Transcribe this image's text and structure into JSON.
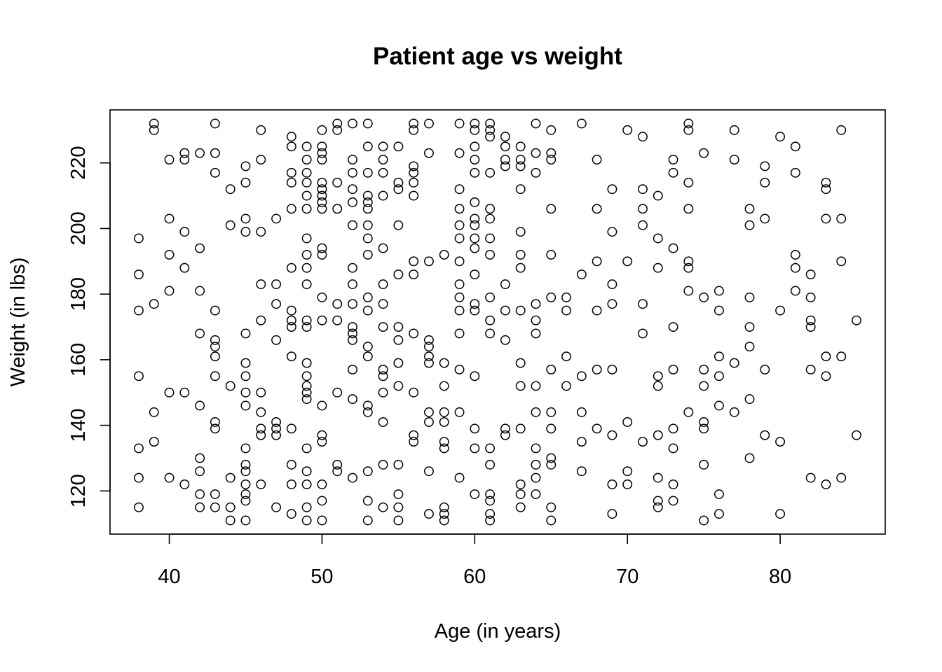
{
  "chart_data": {
    "type": "scatter",
    "title": "Patient age vs weight",
    "xlabel": "Age (in years)",
    "ylabel": "Weight (in lbs)",
    "xlim": [
      36.12,
      86.88
    ],
    "ylim": [
      106.84,
      236.16
    ],
    "xticks": [
      40,
      50,
      60,
      70,
      80
    ],
    "yticks": [
      120,
      140,
      160,
      180,
      200,
      220
    ],
    "grid": false,
    "legend": "none",
    "points": [
      [
        38,
        197
      ],
      [
        38,
        186
      ],
      [
        38,
        175
      ],
      [
        38,
        155
      ],
      [
        38,
        133
      ],
      [
        38,
        124
      ],
      [
        38,
        115
      ],
      [
        39,
        232
      ],
      [
        39,
        230
      ],
      [
        39,
        177
      ],
      [
        39,
        144
      ],
      [
        39,
        135
      ],
      [
        40,
        221
      ],
      [
        40,
        203
      ],
      [
        40,
        192
      ],
      [
        40,
        181
      ],
      [
        40,
        150
      ],
      [
        40,
        124
      ],
      [
        41,
        223
      ],
      [
        41,
        221
      ],
      [
        41,
        199
      ],
      [
        41,
        188
      ],
      [
        41,
        150
      ],
      [
        41,
        122
      ],
      [
        42,
        223
      ],
      [
        42,
        194
      ],
      [
        42,
        181
      ],
      [
        42,
        168
      ],
      [
        42,
        146
      ],
      [
        42,
        130
      ],
      [
        42,
        126
      ],
      [
        42,
        119
      ],
      [
        42,
        115
      ],
      [
        43,
        232
      ],
      [
        43,
        223
      ],
      [
        43,
        217
      ],
      [
        43,
        175
      ],
      [
        43,
        166
      ],
      [
        43,
        164
      ],
      [
        43,
        161
      ],
      [
        43,
        155
      ],
      [
        43,
        141
      ],
      [
        43,
        139
      ],
      [
        43,
        119
      ],
      [
        43,
        115
      ],
      [
        44,
        212
      ],
      [
        44,
        201
      ],
      [
        44,
        152
      ],
      [
        44,
        124
      ],
      [
        44,
        115
      ],
      [
        44,
        111
      ],
      [
        45,
        219
      ],
      [
        45,
        214
      ],
      [
        45,
        203
      ],
      [
        45,
        199
      ],
      [
        45,
        168
      ],
      [
        45,
        159
      ],
      [
        45,
        155
      ],
      [
        45,
        150
      ],
      [
        45,
        146
      ],
      [
        45,
        133
      ],
      [
        45,
        128
      ],
      [
        45,
        126
      ],
      [
        45,
        122
      ],
      [
        45,
        119
      ],
      [
        45,
        117
      ],
      [
        45,
        111
      ],
      [
        46,
        230
      ],
      [
        46,
        221
      ],
      [
        46,
        199
      ],
      [
        46,
        183
      ],
      [
        46,
        172
      ],
      [
        46,
        150
      ],
      [
        46,
        144
      ],
      [
        46,
        139
      ],
      [
        46,
        137
      ],
      [
        46,
        122
      ],
      [
        47,
        203
      ],
      [
        47,
        183
      ],
      [
        47,
        177
      ],
      [
        47,
        166
      ],
      [
        47,
        141
      ],
      [
        47,
        139
      ],
      [
        47,
        137
      ],
      [
        47,
        115
      ],
      [
        48,
        228
      ],
      [
        48,
        225
      ],
      [
        48,
        217
      ],
      [
        48,
        214
      ],
      [
        48,
        206
      ],
      [
        48,
        188
      ],
      [
        48,
        175
      ],
      [
        48,
        172
      ],
      [
        48,
        170
      ],
      [
        48,
        161
      ],
      [
        48,
        139
      ],
      [
        48,
        128
      ],
      [
        48,
        122
      ],
      [
        48,
        113
      ],
      [
        49,
        225
      ],
      [
        49,
        221
      ],
      [
        49,
        217
      ],
      [
        49,
        214
      ],
      [
        49,
        210
      ],
      [
        49,
        206
      ],
      [
        49,
        197
      ],
      [
        49,
        192
      ],
      [
        49,
        188
      ],
      [
        49,
        183
      ],
      [
        49,
        172
      ],
      [
        49,
        170
      ],
      [
        49,
        159
      ],
      [
        49,
        155
      ],
      [
        49,
        152
      ],
      [
        49,
        150
      ],
      [
        49,
        148
      ],
      [
        49,
        133
      ],
      [
        49,
        126
      ],
      [
        49,
        122
      ],
      [
        49,
        115
      ],
      [
        49,
        111
      ],
      [
        50,
        230
      ],
      [
        50,
        225
      ],
      [
        50,
        223
      ],
      [
        50,
        221
      ],
      [
        50,
        214
      ],
      [
        50,
        212
      ],
      [
        50,
        210
      ],
      [
        50,
        208
      ],
      [
        50,
        206
      ],
      [
        50,
        194
      ],
      [
        50,
        192
      ],
      [
        50,
        179
      ],
      [
        50,
        172
      ],
      [
        50,
        146
      ],
      [
        50,
        137
      ],
      [
        50,
        135
      ],
      [
        50,
        122
      ],
      [
        50,
        117
      ],
      [
        50,
        111
      ],
      [
        51,
        232
      ],
      [
        51,
        230
      ],
      [
        51,
        214
      ],
      [
        51,
        206
      ],
      [
        51,
        177
      ],
      [
        51,
        172
      ],
      [
        51,
        150
      ],
      [
        51,
        128
      ],
      [
        51,
        126
      ],
      [
        52,
        232
      ],
      [
        52,
        221
      ],
      [
        52,
        217
      ],
      [
        52,
        212
      ],
      [
        52,
        208
      ],
      [
        52,
        201
      ],
      [
        52,
        188
      ],
      [
        52,
        183
      ],
      [
        52,
        177
      ],
      [
        52,
        170
      ],
      [
        52,
        168
      ],
      [
        52,
        166
      ],
      [
        52,
        157
      ],
      [
        52,
        148
      ],
      [
        52,
        124
      ],
      [
        53,
        232
      ],
      [
        53,
        225
      ],
      [
        53,
        217
      ],
      [
        53,
        210
      ],
      [
        53,
        208
      ],
      [
        53,
        206
      ],
      [
        53,
        201
      ],
      [
        53,
        197
      ],
      [
        53,
        192
      ],
      [
        53,
        179
      ],
      [
        53,
        175
      ],
      [
        53,
        164
      ],
      [
        53,
        161
      ],
      [
        53,
        146
      ],
      [
        53,
        144
      ],
      [
        53,
        126
      ],
      [
        53,
        117
      ],
      [
        53,
        111
      ],
      [
        54,
        225
      ],
      [
        54,
        221
      ],
      [
        54,
        217
      ],
      [
        54,
        210
      ],
      [
        54,
        194
      ],
      [
        54,
        183
      ],
      [
        54,
        177
      ],
      [
        54,
        170
      ],
      [
        54,
        157
      ],
      [
        54,
        155
      ],
      [
        54,
        150
      ],
      [
        54,
        141
      ],
      [
        54,
        128
      ],
      [
        54,
        115
      ],
      [
        55,
        225
      ],
      [
        55,
        214
      ],
      [
        55,
        212
      ],
      [
        55,
        201
      ],
      [
        55,
        186
      ],
      [
        55,
        170
      ],
      [
        55,
        166
      ],
      [
        55,
        159
      ],
      [
        55,
        152
      ],
      [
        55,
        128
      ],
      [
        55,
        119
      ],
      [
        55,
        115
      ],
      [
        55,
        111
      ],
      [
        56,
        232
      ],
      [
        56,
        230
      ],
      [
        56,
        219
      ],
      [
        56,
        217
      ],
      [
        56,
        214
      ],
      [
        56,
        210
      ],
      [
        56,
        190
      ],
      [
        56,
        186
      ],
      [
        56,
        168
      ],
      [
        56,
        150
      ],
      [
        56,
        137
      ],
      [
        56,
        135
      ],
      [
        57,
        232
      ],
      [
        57,
        223
      ],
      [
        57,
        190
      ],
      [
        57,
        166
      ],
      [
        57,
        164
      ],
      [
        57,
        161
      ],
      [
        57,
        159
      ],
      [
        57,
        144
      ],
      [
        57,
        141
      ],
      [
        57,
        126
      ],
      [
        57,
        113
      ],
      [
        58,
        192
      ],
      [
        58,
        159
      ],
      [
        58,
        152
      ],
      [
        58,
        144
      ],
      [
        58,
        141
      ],
      [
        58,
        135
      ],
      [
        58,
        133
      ],
      [
        58,
        115
      ],
      [
        58,
        113
      ],
      [
        58,
        111
      ],
      [
        59,
        232
      ],
      [
        59,
        223
      ],
      [
        59,
        212
      ],
      [
        59,
        206
      ],
      [
        59,
        201
      ],
      [
        59,
        197
      ],
      [
        59,
        190
      ],
      [
        59,
        183
      ],
      [
        59,
        179
      ],
      [
        59,
        175
      ],
      [
        59,
        168
      ],
      [
        59,
        157
      ],
      [
        59,
        144
      ],
      [
        59,
        124
      ],
      [
        60,
        232
      ],
      [
        60,
        230
      ],
      [
        60,
        225
      ],
      [
        60,
        221
      ],
      [
        60,
        217
      ],
      [
        60,
        208
      ],
      [
        60,
        203
      ],
      [
        60,
        201
      ],
      [
        60,
        197
      ],
      [
        60,
        194
      ],
      [
        60,
        186
      ],
      [
        60,
        177
      ],
      [
        60,
        175
      ],
      [
        60,
        155
      ],
      [
        60,
        139
      ],
      [
        60,
        133
      ],
      [
        60,
        119
      ],
      [
        61,
        232
      ],
      [
        61,
        230
      ],
      [
        61,
        228
      ],
      [
        61,
        217
      ],
      [
        61,
        206
      ],
      [
        61,
        203
      ],
      [
        61,
        197
      ],
      [
        61,
        192
      ],
      [
        61,
        179
      ],
      [
        61,
        172
      ],
      [
        61,
        168
      ],
      [
        61,
        133
      ],
      [
        61,
        128
      ],
      [
        61,
        119
      ],
      [
        61,
        117
      ],
      [
        61,
        113
      ],
      [
        61,
        111
      ],
      [
        62,
        228
      ],
      [
        62,
        225
      ],
      [
        62,
        221
      ],
      [
        62,
        219
      ],
      [
        62,
        183
      ],
      [
        62,
        175
      ],
      [
        62,
        166
      ],
      [
        62,
        139
      ],
      [
        62,
        137
      ],
      [
        63,
        225
      ],
      [
        63,
        221
      ],
      [
        63,
        219
      ],
      [
        63,
        212
      ],
      [
        63,
        199
      ],
      [
        63,
        192
      ],
      [
        63,
        188
      ],
      [
        63,
        175
      ],
      [
        63,
        159
      ],
      [
        63,
        152
      ],
      [
        63,
        139
      ],
      [
        63,
        122
      ],
      [
        63,
        119
      ],
      [
        63,
        115
      ],
      [
        64,
        232
      ],
      [
        64,
        223
      ],
      [
        64,
        217
      ],
      [
        64,
        177
      ],
      [
        64,
        172
      ],
      [
        64,
        168
      ],
      [
        64,
        152
      ],
      [
        64,
        144
      ],
      [
        64,
        133
      ],
      [
        64,
        128
      ],
      [
        64,
        124
      ],
      [
        64,
        119
      ],
      [
        65,
        230
      ],
      [
        65,
        223
      ],
      [
        65,
        221
      ],
      [
        65,
        206
      ],
      [
        65,
        192
      ],
      [
        65,
        179
      ],
      [
        65,
        157
      ],
      [
        65,
        144
      ],
      [
        65,
        139
      ],
      [
        65,
        130
      ],
      [
        65,
        128
      ],
      [
        65,
        115
      ],
      [
        65,
        111
      ],
      [
        66,
        179
      ],
      [
        66,
        175
      ],
      [
        66,
        161
      ],
      [
        66,
        152
      ],
      [
        67,
        232
      ],
      [
        67,
        186
      ],
      [
        67,
        155
      ],
      [
        67,
        144
      ],
      [
        67,
        135
      ],
      [
        67,
        126
      ],
      [
        68,
        221
      ],
      [
        68,
        206
      ],
      [
        68,
        190
      ],
      [
        68,
        175
      ],
      [
        68,
        157
      ],
      [
        68,
        139
      ],
      [
        69,
        212
      ],
      [
        69,
        199
      ],
      [
        69,
        183
      ],
      [
        69,
        177
      ],
      [
        69,
        157
      ],
      [
        69,
        137
      ],
      [
        69,
        122
      ],
      [
        69,
        113
      ],
      [
        70,
        230
      ],
      [
        70,
        190
      ],
      [
        70,
        141
      ],
      [
        70,
        126
      ],
      [
        70,
        122
      ],
      [
        71,
        228
      ],
      [
        71,
        212
      ],
      [
        71,
        206
      ],
      [
        71,
        201
      ],
      [
        71,
        177
      ],
      [
        71,
        168
      ],
      [
        71,
        135
      ],
      [
        72,
        210
      ],
      [
        72,
        197
      ],
      [
        72,
        188
      ],
      [
        72,
        155
      ],
      [
        72,
        152
      ],
      [
        72,
        137
      ],
      [
        72,
        124
      ],
      [
        72,
        117
      ],
      [
        72,
        115
      ],
      [
        73,
        221
      ],
      [
        73,
        217
      ],
      [
        73,
        194
      ],
      [
        73,
        170
      ],
      [
        73,
        157
      ],
      [
        73,
        139
      ],
      [
        73,
        133
      ],
      [
        73,
        122
      ],
      [
        73,
        117
      ],
      [
        74,
        232
      ],
      [
        74,
        230
      ],
      [
        74,
        214
      ],
      [
        74,
        206
      ],
      [
        74,
        190
      ],
      [
        74,
        188
      ],
      [
        74,
        181
      ],
      [
        74,
        144
      ],
      [
        75,
        223
      ],
      [
        75,
        179
      ],
      [
        75,
        157
      ],
      [
        75,
        152
      ],
      [
        75,
        141
      ],
      [
        75,
        139
      ],
      [
        75,
        128
      ],
      [
        75,
        111
      ],
      [
        76,
        181
      ],
      [
        76,
        175
      ],
      [
        76,
        161
      ],
      [
        76,
        155
      ],
      [
        76,
        146
      ],
      [
        76,
        119
      ],
      [
        76,
        113
      ],
      [
        77,
        230
      ],
      [
        77,
        221
      ],
      [
        77,
        159
      ],
      [
        77,
        144
      ],
      [
        78,
        206
      ],
      [
        78,
        201
      ],
      [
        78,
        179
      ],
      [
        78,
        170
      ],
      [
        78,
        164
      ],
      [
        78,
        148
      ],
      [
        78,
        130
      ],
      [
        79,
        219
      ],
      [
        79,
        214
      ],
      [
        79,
        203
      ],
      [
        79,
        157
      ],
      [
        79,
        137
      ],
      [
        80,
        228
      ],
      [
        80,
        175
      ],
      [
        80,
        135
      ],
      [
        80,
        113
      ],
      [
        81,
        225
      ],
      [
        81,
        217
      ],
      [
        81,
        192
      ],
      [
        81,
        188
      ],
      [
        81,
        181
      ],
      [
        82,
        186
      ],
      [
        82,
        179
      ],
      [
        82,
        172
      ],
      [
        82,
        170
      ],
      [
        82,
        157
      ],
      [
        82,
        124
      ],
      [
        83,
        214
      ],
      [
        83,
        212
      ],
      [
        83,
        203
      ],
      [
        83,
        161
      ],
      [
        83,
        155
      ],
      [
        83,
        122
      ],
      [
        84,
        230
      ],
      [
        84,
        203
      ],
      [
        84,
        190
      ],
      [
        84,
        161
      ],
      [
        84,
        124
      ],
      [
        85,
        172
      ],
      [
        85,
        137
      ]
    ]
  }
}
